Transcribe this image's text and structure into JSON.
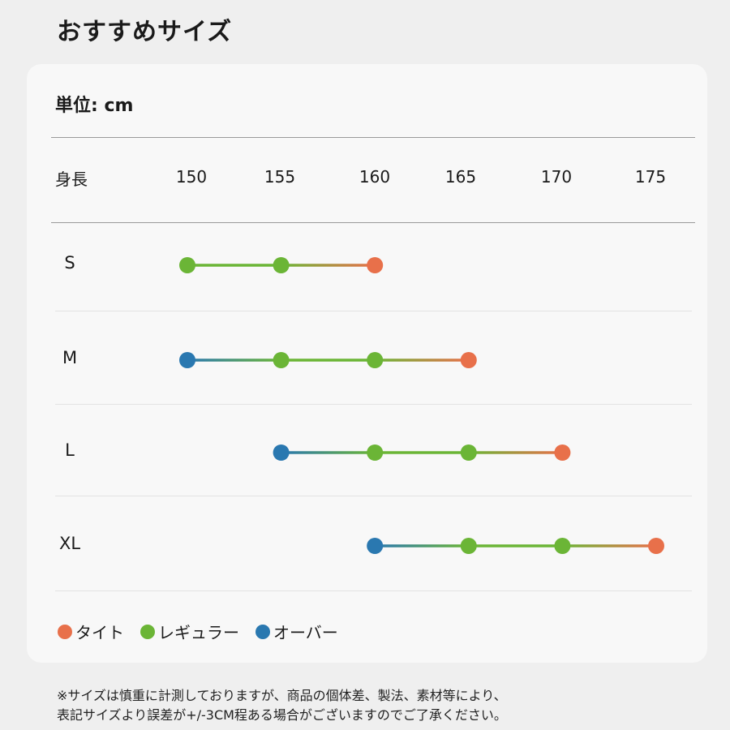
{
  "header": {
    "title": "おすすめサイズ"
  },
  "chart_data": {
    "type": "line",
    "unit": "単位: cm",
    "axis_label": "身長",
    "ticks": [
      150,
      155,
      160,
      165,
      170,
      175
    ],
    "series": [
      {
        "name": "S",
        "points": [
          {
            "x": 150,
            "fit": "regular"
          },
          {
            "x": 155,
            "fit": "regular"
          },
          {
            "x": 160,
            "fit": "tight"
          }
        ]
      },
      {
        "name": "M",
        "points": [
          {
            "x": 150,
            "fit": "over"
          },
          {
            "x": 155,
            "fit": "regular"
          },
          {
            "x": 160,
            "fit": "regular"
          },
          {
            "x": 165,
            "fit": "tight"
          }
        ]
      },
      {
        "name": "L",
        "points": [
          {
            "x": 155,
            "fit": "over"
          },
          {
            "x": 160,
            "fit": "regular"
          },
          {
            "x": 165,
            "fit": "regular"
          },
          {
            "x": 170,
            "fit": "tight"
          }
        ]
      },
      {
        "name": "XL",
        "points": [
          {
            "x": 160,
            "fit": "over"
          },
          {
            "x": 165,
            "fit": "regular"
          },
          {
            "x": 170,
            "fit": "regular"
          },
          {
            "x": 175,
            "fit": "tight"
          }
        ]
      }
    ],
    "legend": [
      {
        "key": "tight",
        "label": "タイト"
      },
      {
        "key": "regular",
        "label": "レギュラー"
      },
      {
        "key": "over",
        "label": "オーバー"
      }
    ],
    "colors": {
      "tight": "#e8704a",
      "regular": "#6bb536",
      "over": "#2a78b0"
    }
  },
  "note": {
    "line1": "※サイズは慎重に計測しておりますが、商品の個体差、製法、素材等により、",
    "line2": "表記サイズより誤差が+/-3CM程ある場合がございますのでご了承ください。"
  }
}
